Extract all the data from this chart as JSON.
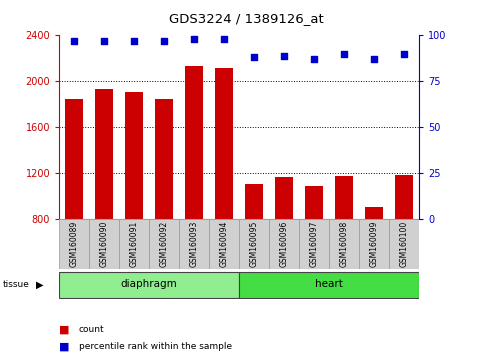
{
  "title": "GDS3224 / 1389126_at",
  "categories": [
    "GSM160089",
    "GSM160090",
    "GSM160091",
    "GSM160092",
    "GSM160093",
    "GSM160094",
    "GSM160095",
    "GSM160096",
    "GSM160097",
    "GSM160098",
    "GSM160099",
    "GSM160100"
  ],
  "counts": [
    1850,
    1930,
    1910,
    1850,
    2130,
    2120,
    1110,
    1165,
    1090,
    1175,
    905,
    1190
  ],
  "percentiles": [
    97,
    97,
    97,
    97,
    98,
    98,
    88,
    89,
    87,
    90,
    87,
    90
  ],
  "tissue_groups": [
    {
      "label": "diaphragm",
      "start": 0,
      "end": 5,
      "color": "#90EE90"
    },
    {
      "label": "heart",
      "start": 6,
      "end": 11,
      "color": "#44DD44"
    }
  ],
  "bar_color": "#CC0000",
  "dot_color": "#0000CC",
  "ylim_left": [
    800,
    2400
  ],
  "ylim_right": [
    0,
    100
  ],
  "yticks_left": [
    800,
    1200,
    1600,
    2000,
    2400
  ],
  "yticks_right": [
    0,
    25,
    50,
    75,
    100
  ],
  "left_axis_color": "#CC0000",
  "right_axis_color": "#0000CC",
  "xlabel_bg": "#D0D0D0",
  "figsize": [
    4.93,
    3.54
  ],
  "dpi": 100
}
